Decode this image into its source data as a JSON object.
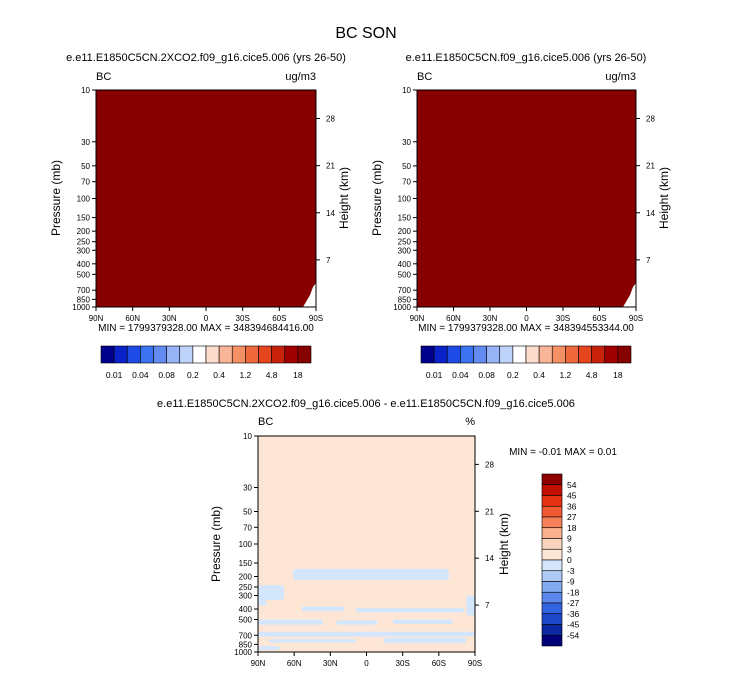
{
  "figure": {
    "title": "BC SON"
  },
  "colors": {
    "dark_red": "#870000",
    "diff_positive": "#fde6d6",
    "diff_negative": "#d4e6fb"
  },
  "abs_colorbar": {
    "colors": [
      "#00008c",
      "#0a23c8",
      "#1e4be6",
      "#3c73f0",
      "#648cf0",
      "#96b4f5",
      "#bed2fa",
      "#ffffff",
      "#fddccd",
      "#fab496",
      "#f59164",
      "#f0693c",
      "#e6461e",
      "#c8230a",
      "#a00000",
      "#870000"
    ],
    "labels": [
      "0.01",
      "0.04",
      "0.08",
      "0.2",
      "0.4",
      "1.2",
      "4.8",
      "18"
    ]
  },
  "diff_colorbar": {
    "colors": [
      "#8c0000",
      "#bf1000",
      "#e63214",
      "#f05a32",
      "#f5805a",
      "#fab08c",
      "#fbd4bd",
      "#fde6d6",
      "#d4e6fb",
      "#aecbf5",
      "#82aaf0",
      "#5a87eb",
      "#3264e1",
      "#1e46c8",
      "#0a28a0",
      "#000078"
    ],
    "labels": [
      "54",
      "45",
      "36",
      "27",
      "18",
      "9",
      "3",
      "0",
      "-3",
      "-9",
      "-18",
      "-27",
      "-36",
      "-45",
      "-54"
    ]
  },
  "chart_data": [
    {
      "type": "heatmap",
      "title": "e.e11.E1850C5CN.2XCO2.f09_g16.cice5.006 (yrs 26-50)",
      "left_label": "BC",
      "right_label": "ug/m3",
      "ylabel": "Pressure (mb)",
      "ylabel_right": "Height (km)",
      "x_tick_labels": [
        "90N",
        "60N",
        "30N",
        "0",
        "30S",
        "60S",
        "90S"
      ],
      "y_tick_labels": [
        "10",
        "30",
        "50",
        "70",
        "100",
        "150",
        "200",
        "250",
        "300",
        "400",
        "500",
        "700",
        "850",
        "1000"
      ],
      "y2_tick_labels": [
        "28",
        "21",
        "14",
        "7"
      ],
      "min_max_text": "MIN = 1799379328.00   MAX = 348394684416.00",
      "fill_value": "18",
      "log_pressure_axis": true
    },
    {
      "type": "heatmap",
      "title": "e.e11.E1850C5CN.f09_g16.cice5.006 (yrs 26-50)",
      "left_label": "BC",
      "right_label": "ug/m3",
      "ylabel": "Pressure (mb)",
      "ylabel_right": "Height (km)",
      "x_tick_labels": [
        "90N",
        "60N",
        "30N",
        "0",
        "30S",
        "60S",
        "90S"
      ],
      "y_tick_labels": [
        "10",
        "30",
        "50",
        "70",
        "100",
        "150",
        "200",
        "250",
        "300",
        "400",
        "500",
        "700",
        "850",
        "1000"
      ],
      "y2_tick_labels": [
        "28",
        "21",
        "14",
        "7"
      ],
      "min_max_text": "MIN = 1799379328.00   MAX = 348394553344.00",
      "fill_value": "18",
      "log_pressure_axis": true
    },
    {
      "type": "heatmap",
      "title": "e.e11.E1850C5CN.2XCO2.f09_g16.cice5.006 - e.e11.E1850C5CN.f09_g16.cice5.006",
      "left_label": "BC",
      "right_label": "%",
      "ylabel": "Pressure (mb)",
      "ylabel_right": "Height (km)",
      "x_tick_labels": [
        "90N",
        "60N",
        "30N",
        "0",
        "30S",
        "60S",
        "90S"
      ],
      "y_tick_labels": [
        "10",
        "30",
        "50",
        "70",
        "100",
        "150",
        "200",
        "250",
        "300",
        "400",
        "500",
        "700",
        "850",
        "1000"
      ],
      "y2_tick_labels": [
        "28",
        "21",
        "14",
        "7"
      ],
      "min_max_text": "MIN =  -0.01   MAX =   0.01",
      "fill_value": "0 to 3 (with -3 to 0 patches)",
      "log_pressure_axis": true
    }
  ]
}
